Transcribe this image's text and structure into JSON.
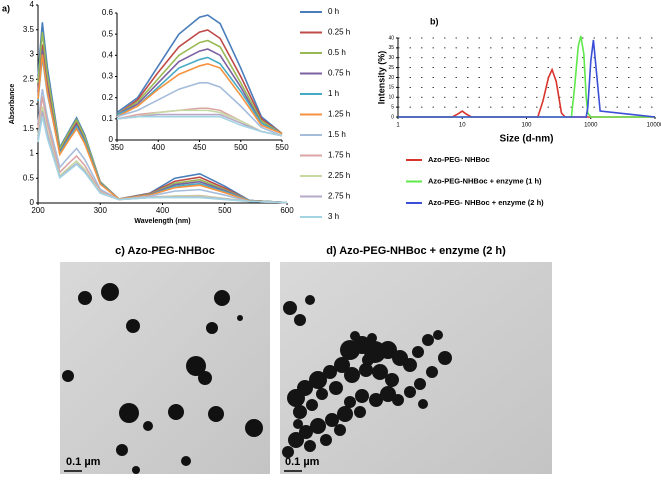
{
  "chart_data": [
    {
      "type": "line",
      "label": "a)",
      "xlabel": "Wavelength  (nm)",
      "ylabel": "Absorbance",
      "x": [
        200,
        207,
        215,
        235,
        250,
        262,
        275,
        300,
        330,
        380,
        420,
        460,
        500,
        540,
        600
      ],
      "xlim": [
        200,
        600
      ],
      "xticks": [
        200,
        300,
        400,
        500,
        600
      ],
      "ylim": [
        0,
        4
      ],
      "yticks": [
        0,
        0.5,
        1,
        1.5,
        2,
        2.5,
        3,
        3.5,
        4
      ],
      "legend": "right",
      "series": [
        {
          "name": "0 h",
          "color": "#4a7ebb",
          "values": [
            2.56,
            3.65,
            2.74,
            1.12,
            1.46,
            1.72,
            1.38,
            0.43,
            0.08,
            0.2,
            0.5,
            0.59,
            0.34,
            0.05,
            0.01
          ]
        },
        {
          "name": "0.25 h",
          "color": "#be4b48",
          "values": [
            2.24,
            3.2,
            2.4,
            1.05,
            1.38,
            1.62,
            1.3,
            0.41,
            0.08,
            0.19,
            0.44,
            0.52,
            0.3,
            0.05,
            0.01
          ]
        },
        {
          "name": "0.5 h",
          "color": "#98b954",
          "values": [
            2.42,
            3.45,
            2.59,
            1.09,
            1.43,
            1.68,
            1.34,
            0.42,
            0.08,
            0.18,
            0.4,
            0.47,
            0.27,
            0.05,
            0.01
          ]
        },
        {
          "name": "0.75 h",
          "color": "#7d60a0",
          "values": [
            2.17,
            3.1,
            2.33,
            1.03,
            1.34,
            1.58,
            1.26,
            0.4,
            0.08,
            0.17,
            0.37,
            0.43,
            0.25,
            0.05,
            0.01
          ]
        },
        {
          "name": "1 h",
          "color": "#46aac5",
          "values": [
            2.07,
            2.95,
            2.21,
            1.01,
            1.32,
            1.55,
            1.24,
            0.39,
            0.08,
            0.16,
            0.34,
            0.39,
            0.23,
            0.05,
            0.01
          ]
        },
        {
          "name": "1.25 h",
          "color": "#f69240",
          "values": [
            2.1,
            3.0,
            2.25,
            0.98,
            1.28,
            1.5,
            1.2,
            0.38,
            0.08,
            0.16,
            0.31,
            0.36,
            0.21,
            0.04,
            0.01
          ]
        },
        {
          "name": "1.5 h",
          "color": "#a5bddb",
          "values": [
            1.61,
            2.3,
            1.73,
            0.72,
            0.94,
            1.1,
            0.88,
            0.28,
            0.07,
            0.14,
            0.24,
            0.27,
            0.16,
            0.03,
            0.01
          ]
        },
        {
          "name": "1.75 h",
          "color": "#dba5a4",
          "values": [
            1.51,
            2.15,
            1.61,
            0.62,
            0.81,
            0.95,
            0.76,
            0.24,
            0.07,
            0.12,
            0.14,
            0.15,
            0.09,
            0.03,
            0.01
          ]
        },
        {
          "name": "2.25 h",
          "color": "#c6d9a3",
          "values": [
            1.37,
            1.95,
            1.46,
            0.55,
            0.72,
            0.85,
            0.68,
            0.21,
            0.07,
            0.11,
            0.14,
            0.14,
            0.09,
            0.03,
            0.01
          ]
        },
        {
          "name": "2.75 h",
          "color": "#b7a9c9",
          "values": [
            1.3,
            1.85,
            1.39,
            0.52,
            0.68,
            0.8,
            0.64,
            0.2,
            0.07,
            0.11,
            0.12,
            0.12,
            0.08,
            0.03,
            0.01
          ]
        },
        {
          "name": "3 h",
          "color": "#a3d4e3",
          "values": [
            1.23,
            1.75,
            1.31,
            0.51,
            0.66,
            0.78,
            0.62,
            0.2,
            0.07,
            0.11,
            0.11,
            0.11,
            0.07,
            0.03,
            0.01
          ]
        }
      ]
    },
    {
      "type": "line",
      "x": [
        350,
        375,
        400,
        425,
        450,
        460,
        475,
        500,
        525,
        550
      ],
      "xlim": [
        350,
        550
      ],
      "xticks": [
        350,
        400,
        450,
        500,
        550
      ],
      "ylim": [
        0,
        0.6
      ],
      "yticks": [
        0,
        0.1,
        0.2,
        0.3,
        0.4,
        0.5,
        0.6
      ],
      "series": [
        {
          "color": "#4a7ebb",
          "values": [
            0.13,
            0.2,
            0.35,
            0.5,
            0.58,
            0.59,
            0.55,
            0.34,
            0.11,
            0.03
          ]
        },
        {
          "color": "#be4b48",
          "values": [
            0.12,
            0.19,
            0.32,
            0.44,
            0.51,
            0.52,
            0.48,
            0.3,
            0.1,
            0.03
          ]
        },
        {
          "color": "#98b954",
          "values": [
            0.12,
            0.18,
            0.29,
            0.4,
            0.46,
            0.47,
            0.44,
            0.27,
            0.09,
            0.03
          ]
        },
        {
          "color": "#7d60a0",
          "values": [
            0.12,
            0.17,
            0.27,
            0.37,
            0.42,
            0.43,
            0.4,
            0.25,
            0.08,
            0.03
          ]
        },
        {
          "color": "#46aac5",
          "values": [
            0.12,
            0.16,
            0.25,
            0.34,
            0.38,
            0.39,
            0.36,
            0.23,
            0.08,
            0.03
          ]
        },
        {
          "color": "#f69240",
          "values": [
            0.11,
            0.16,
            0.24,
            0.31,
            0.35,
            0.36,
            0.34,
            0.21,
            0.07,
            0.03
          ]
        },
        {
          "color": "#a5bddb",
          "values": [
            0.11,
            0.14,
            0.19,
            0.24,
            0.27,
            0.27,
            0.25,
            0.16,
            0.06,
            0.02
          ]
        },
        {
          "color": "#dba5a4",
          "values": [
            0.1,
            0.12,
            0.13,
            0.14,
            0.15,
            0.15,
            0.14,
            0.09,
            0.04,
            0.02
          ]
        },
        {
          "color": "#c6d9a3",
          "values": [
            0.1,
            0.11,
            0.13,
            0.14,
            0.14,
            0.14,
            0.13,
            0.09,
            0.04,
            0.02
          ]
        },
        {
          "color": "#b7a9c9",
          "values": [
            0.1,
            0.11,
            0.12,
            0.12,
            0.12,
            0.12,
            0.12,
            0.08,
            0.04,
            0.02
          ]
        },
        {
          "color": "#a3d4e3",
          "values": [
            0.1,
            0.11,
            0.11,
            0.11,
            0.11,
            0.11,
            0.11,
            0.07,
            0.04,
            0.02
          ]
        }
      ]
    },
    {
      "type": "line",
      "label": "b)",
      "xlabel": "Size (d-nm)",
      "ylabel": "Intensity (%)",
      "xscale": "log",
      "grid": true,
      "legend": "bottom",
      "x": [
        1,
        7,
        8.5,
        10,
        11.5,
        14,
        150,
        180,
        220,
        250,
        290,
        350,
        400,
        500,
        560,
        640,
        700,
        780,
        850,
        900,
        1000,
        1100,
        1250,
        1400,
        10000
      ],
      "xlim": [
        1,
        10000
      ],
      "xticks": [
        1,
        10,
        100,
        1000,
        10000
      ],
      "ylim": [
        0,
        40
      ],
      "yticks": [
        0,
        5,
        10,
        15,
        20,
        25,
        30,
        35,
        40
      ],
      "series": [
        {
          "name": "Azo-PEG- NHBoc",
          "color": "#d9342b",
          "values": [
            0,
            0,
            1.5,
            3,
            1.5,
            0,
            0,
            8,
            20,
            24,
            18,
            2,
            0,
            0,
            0,
            0,
            0,
            0,
            0,
            0,
            0,
            0,
            0,
            0,
            0
          ]
        },
        {
          "name": "Azo-PEG-NHBoc + enzyme (1 h)",
          "color": "#5ee84a",
          "values": [
            0,
            0,
            0,
            0,
            0,
            0,
            0,
            0,
            0,
            0,
            0,
            0,
            0,
            0,
            15,
            36,
            41,
            32,
            10,
            2,
            0,
            0,
            0,
            0,
            0
          ]
        },
        {
          "name": "Azo-PEG- NHBoc + enzyme (2 h)",
          "color": "#3b4fd6",
          "values": [
            0,
            0,
            0,
            0,
            0,
            0,
            0,
            0,
            0,
            0,
            0,
            0,
            0,
            0,
            0,
            0,
            0,
            0,
            0,
            5,
            28,
            39,
            20,
            3,
            0
          ]
        }
      ]
    }
  ],
  "images": [
    {
      "title": "c) Azo-PEG-NHBoc",
      "scale_bar": "0.1 µm"
    },
    {
      "title": "d) Azo-PEG-NHBoc + enzyme (2 h)",
      "scale_bar": "0.1 µm"
    }
  ]
}
